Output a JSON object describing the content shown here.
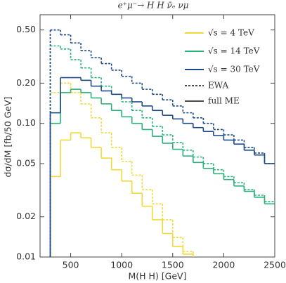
{
  "chart_data": {
    "type": "step",
    "title": "e⁺μ⁻→ H H ν̄ₑ νμ",
    "x_label": "M(H H) [GeV]",
    "y_label": "dσ/dM [fb/50 GeV]",
    "log_y": true,
    "grid": false,
    "legend": "upper right",
    "xlim": [
      200,
      2500
    ],
    "xticks": [
      500,
      1000,
      1500,
      2000,
      2500
    ],
    "ylim": [
      0.01,
      0.65
    ],
    "yticks": [
      {
        "value": 0.5,
        "label": "0.50"
      },
      {
        "value": 0.2,
        "label": "0.20"
      },
      {
        "value": 0.1,
        "label": "0.10"
      },
      0.05,
      0.02,
      0.01
    ],
    "bins": [
      300,
      400,
      500,
      600,
      700,
      800,
      900,
      1000,
      1100,
      1200,
      1300,
      1400,
      1500,
      1600,
      1700,
      1800,
      1900,
      2000,
      2100,
      2200,
      2300,
      2400,
      2500
    ],
    "line_styles": [
      {
        "name": "EWA",
        "dashed": true
      },
      {
        "name": "full ME",
        "dashed": false
      }
    ],
    "series": [
      {
        "name": "√s  = 4 TeV",
        "color": "#f2d93a",
        "values_by_style": [
          [
            0.17,
            0.2,
            0.17,
            0.14,
            0.11,
            0.085,
            0.066,
            0.052,
            0.041,
            0.032,
            0.025,
            0.019,
            0.014,
            0.011,
            null,
            null,
            null,
            null,
            null,
            null,
            null,
            null
          ],
          [
            0.04,
            0.075,
            0.085,
            0.078,
            0.066,
            0.055,
            0.045,
            0.037,
            0.03,
            0.024,
            0.019,
            0.015,
            0.012,
            0.0105,
            null,
            null,
            null,
            null,
            null,
            null,
            null,
            null
          ]
        ]
      },
      {
        "name": "√s  = 14 TeV",
        "color": "#2ab27a",
        "values_by_style": [
          [
            0.38,
            0.36,
            0.3,
            0.26,
            0.22,
            0.19,
            0.165,
            0.145,
            0.125,
            0.11,
            0.095,
            0.082,
            0.072,
            0.063,
            0.056,
            0.05,
            0.045,
            0.04,
            0.036,
            0.032,
            0.029,
            0.026
          ],
          [
            0.1,
            0.17,
            0.18,
            0.17,
            0.155,
            0.14,
            0.125,
            0.112,
            0.1,
            0.09,
            0.08,
            0.071,
            0.064,
            0.057,
            0.051,
            0.046,
            0.042,
            0.038,
            0.034,
            0.031,
            0.028,
            0.025
          ]
        ]
      },
      {
        "name": "√s  = 30 TeV",
        "color": "#1d4a87",
        "values_by_style": [
          [
            0.5,
            0.46,
            0.4,
            0.35,
            0.31,
            0.28,
            0.25,
            0.225,
            0.2,
            0.18,
            0.165,
            0.15,
            0.135,
            0.12,
            0.11,
            0.1,
            0.09,
            0.082,
            0.075,
            0.066,
            0.06,
            0.05
          ],
          [
            0.12,
            0.22,
            0.22,
            0.21,
            0.19,
            0.175,
            0.165,
            0.155,
            0.145,
            0.135,
            0.125,
            0.115,
            0.108,
            0.1,
            0.093,
            0.087,
            0.081,
            0.075,
            0.07,
            0.063,
            0.058,
            0.05
          ]
        ]
      }
    ]
  }
}
